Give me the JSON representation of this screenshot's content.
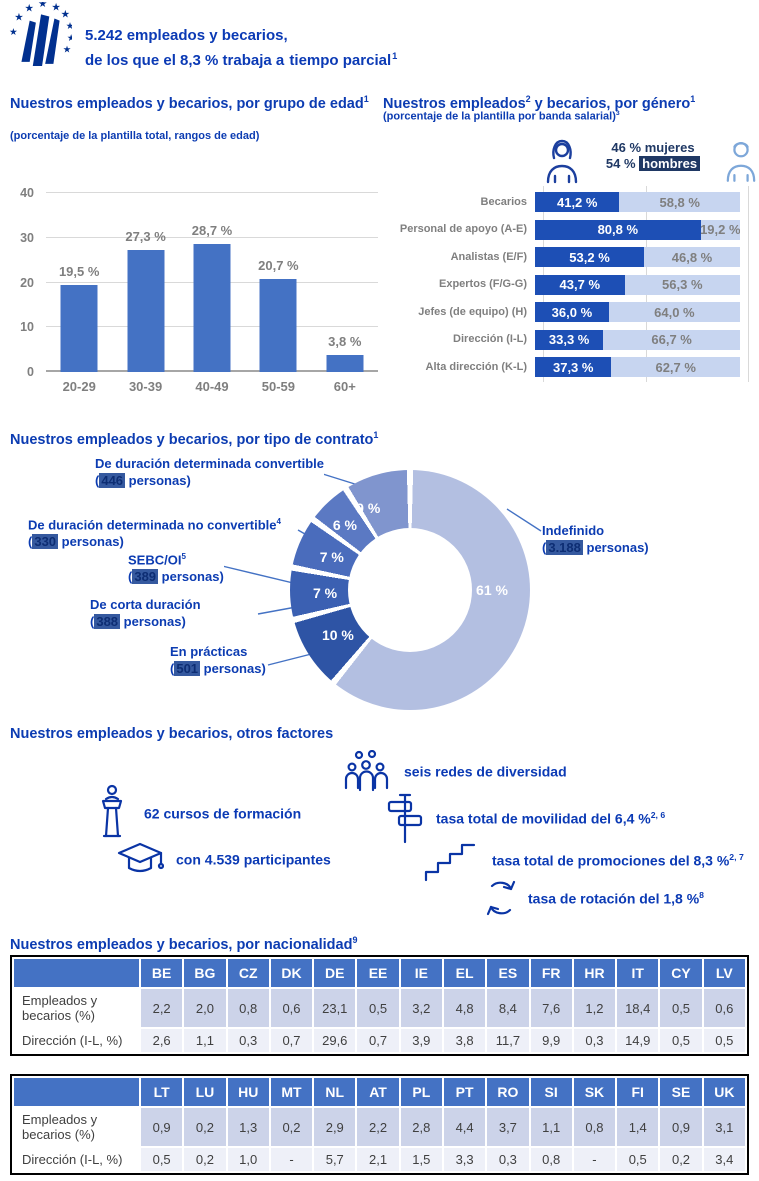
{
  "header": {
    "line1": "5.242 empleados y becarios,",
    "line2": "de los que el 8,3 % trabaja a ",
    "line2_link": "tiempo parcial",
    "line2_sup": "1"
  },
  "others_section": {
    "title": "Nuestros empleados y becarios, otros factores",
    "items": [
      {
        "icon": "trainer-icon",
        "text": "62 cursos de formación",
        "sup": ""
      },
      {
        "icon": "graduation-cap-icon",
        "text": "con 4.539 participantes",
        "sup": ""
      },
      {
        "icon": "diversity-people-icon",
        "text": "seis redes de diversidad",
        "sup": ""
      },
      {
        "icon": "signpost-icon",
        "text": "tasa total de movilidad del 6,4 %",
        "sup": "2, 6"
      },
      {
        "icon": "stairs-icon",
        "text": "tasa total de promociones del 8,3 %",
        "sup": "2, 7"
      },
      {
        "icon": "rotation-arrows-icon",
        "text": "tasa de rotación del 1,8 %",
        "sup": "8"
      }
    ]
  },
  "nationality": {
    "title": "Nuestros empleados y becarios, por nacionalidad",
    "title_sup": "9"
  },
  "chart_data": [
    {
      "type": "bar",
      "title": "Nuestros empleados  y becarios,  por grupo de edad",
      "title_sup": "1",
      "subtitle": "(porcentaje de la plantilla total, rangos de edad)",
      "categories": [
        "20-29",
        "30-39",
        "40-49",
        "50-59",
        "60+"
      ],
      "values": [
        19.5,
        27.3,
        28.7,
        20.7,
        3.8
      ],
      "value_labels": [
        "19,5 %",
        "27,3 %",
        "28,7 %",
        "20,7 %",
        "3,8 %"
      ],
      "ylim": [
        0,
        40
      ],
      "yticks": [
        0,
        10,
        20,
        30,
        40
      ],
      "bar_color": "#4472c4",
      "legend": "none",
      "grid": "horizontal"
    },
    {
      "type": "bar",
      "variant": "horizontal-stacked",
      "title_parts": {
        "t1": "Nuestros empleados",
        "s1": "2",
        "t2": "  y becarios, por género",
        "s2": "1"
      },
      "subtitle": "(porcentaje de la plantilla por banda salarial)",
      "subtitle_sup": "3",
      "legend": {
        "women_value": "46 %",
        "women_label": "mujeres",
        "men_value": "54 %",
        "men_label": "hombres"
      },
      "categories": [
        "Becarios",
        "Personal de apoyo (A-E)",
        "Analistas (E/F)",
        "Expertos (F/G-G)",
        "Jefes (de equipo) (H)",
        "Dirección (I-L)",
        "Alta dirección (K-L)"
      ],
      "series": [
        {
          "name": "mujeres",
          "color": "#1d4fb5",
          "values": [
            41.2,
            80.8,
            53.2,
            43.7,
            36.0,
            33.3,
            37.3
          ],
          "labels": [
            "41,2 %",
            "80,8 %",
            "53,2 %",
            "43,7 %",
            "36,0 %",
            "33,3 %",
            "37,3 %"
          ]
        },
        {
          "name": "hombres",
          "color": "#c7d5f0",
          "values": [
            58.8,
            19.2,
            46.8,
            56.3,
            64.0,
            66.7,
            62.7
          ],
          "labels": [
            "58,8 %",
            "19,2 %",
            "46,8 %",
            "56,3 %",
            "64,0 %",
            "66,7 %",
            "62,7 %"
          ]
        }
      ],
      "xlim": [
        0,
        100
      ]
    },
    {
      "type": "pie",
      "variant": "donut",
      "title": "Nuestros empleados  y becarios,  por tipo de contrato",
      "title_sup": "1",
      "persons_word": "personas",
      "slices": [
        {
          "label": "Indefinido",
          "label_sup": "",
          "persons": "3.188",
          "value": 61,
          "value_label": "61 %",
          "color": "#b3bfe1"
        },
        {
          "label": "En prácticas",
          "label_sup": "",
          "persons": "501",
          "value": 10,
          "value_label": "10 %",
          "color": "#2e54a5"
        },
        {
          "label": "De corta duración",
          "label_sup": "",
          "persons": "388",
          "value": 7,
          "value_label": "7 %",
          "color": "#3b60b2"
        },
        {
          "label": "SEBC/OI",
          "label_sup": "5",
          "persons": "389",
          "value": 7,
          "value_label": "7 %",
          "color": "#4a6cbc"
        },
        {
          "label": "De duración determinada no convertible",
          "label_sup": "4",
          "persons": "330",
          "value": 6,
          "value_label": "6 %",
          "color": "#5b79c3"
        },
        {
          "label": "De duración determinada convertible",
          "label_sup": "",
          "persons": "446",
          "value": 9,
          "value_label": "9 %",
          "color": "#8095ce"
        }
      ]
    },
    {
      "type": "table",
      "columns": [
        "",
        "BE",
        "BG",
        "CZ",
        "DK",
        "DE",
        "EE",
        "IE",
        "EL",
        "ES",
        "FR",
        "HR",
        "IT",
        "CY",
        "LV"
      ],
      "rows": [
        [
          "Empleados y becarios (%)",
          "2,2",
          "2,0",
          "0,8",
          "0,6",
          "23,1",
          "0,5",
          "3,2",
          "4,8",
          "8,4",
          "7,6",
          "1,2",
          "18,4",
          "0,5",
          "0,6"
        ],
        [
          "Dirección (I-L, %)",
          "2,6",
          "1,1",
          "0,3",
          "0,7",
          "29,6",
          "0,7",
          "3,9",
          "3,8",
          "11,7",
          "9,9",
          "0,3",
          "14,9",
          "0,5",
          "0,5"
        ]
      ]
    },
    {
      "type": "table",
      "columns": [
        "",
        "LT",
        "LU",
        "HU",
        "MT",
        "NL",
        "AT",
        "PL",
        "PT",
        "RO",
        "SI",
        "SK",
        "FI",
        "SE",
        "UK"
      ],
      "rows": [
        [
          "Empleados y becarios (%)",
          "0,9",
          "0,2",
          "1,3",
          "0,2",
          "2,9",
          "2,2",
          "2,8",
          "4,4",
          "3,7",
          "1,1",
          "0,8",
          "1,4",
          "0,9",
          "3,1"
        ],
        [
          "Dirección (I-L, %)",
          "0,5",
          "0,2",
          "1,0",
          "-",
          "5,7",
          "2,1",
          "1,5",
          "3,3",
          "0,3",
          "0,8",
          "-",
          "0,5",
          "0,2",
          "3,4"
        ]
      ]
    }
  ]
}
